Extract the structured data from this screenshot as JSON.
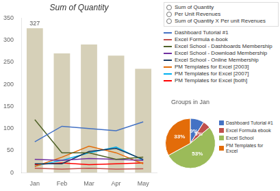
{
  "chart_data": [
    {
      "type": "bar",
      "title": "Sum of Quantity",
      "categories": [
        "Jan",
        "Feb",
        "Mar",
        "Apr",
        "May"
      ],
      "series": [
        {
          "type": "bar",
          "color": "#d6d0b8",
          "values": [
            327,
            270,
            290,
            265,
            235
          ],
          "value_labels": [
            "327",
            null,
            null,
            null,
            null
          ]
        },
        {
          "name": "Dashboard Tutorial #1",
          "type": "line",
          "color": "#4472c4",
          "values": [
            70,
            105,
            100,
            95,
            115
          ]
        },
        {
          "name": "Excel Formula e-book",
          "type": "line",
          "color": "#c0504d",
          "values": [
            10,
            8,
            10,
            8,
            9
          ]
        },
        {
          "name": "Excel School - Dashboards Membership",
          "type": "line",
          "color": "#4f6228",
          "values": [
            120,
            45,
            45,
            30,
            35
          ]
        },
        {
          "name": "Excel School - Download Membership",
          "type": "line",
          "color": "#7030a0",
          "values": [
            30,
            28,
            32,
            30,
            28
          ]
        },
        {
          "name": "Excel School - Online Membership",
          "type": "line",
          "color": "#17375e",
          "values": [
            20,
            20,
            48,
            55,
            30
          ]
        },
        {
          "name": "PM Templates for Excel [2003]",
          "type": "line",
          "color": "#e36c09",
          "values": [
            14,
            35,
            60,
            45,
            20
          ]
        },
        {
          "name": "PM Templates for Excel [2007]",
          "type": "line",
          "color": "#00b0f0",
          "values": [
            15,
            28,
            45,
            58,
            28
          ]
        },
        {
          "name": "PM Templates for Excel [both]",
          "type": "line",
          "color": "#ff0000",
          "values": [
            18,
            22,
            18,
            20,
            22
          ]
        }
      ],
      "ylim": [
        0,
        350
      ],
      "yticks": [
        0,
        50,
        100,
        150,
        200,
        250,
        300,
        350
      ],
      "grid": false,
      "legend": "right",
      "annotations": [
        "Sum of Quantity",
        "Per Unit Revenues",
        "Sum of Quantity X Per unit Revenues"
      ]
    },
    {
      "type": "pie",
      "title": "Groups in Jan",
      "categories": [
        "Dashboard Tutorial #1",
        "Excel Formula ebook",
        "Excel School",
        "PM Templates for\nExcel"
      ],
      "values": [
        9,
        5,
        53,
        33
      ],
      "value_labels": [
        "9%",
        "5%",
        "53%",
        "33%"
      ],
      "data_labels": true,
      "colors": [
        "#4472c4",
        "#c0504d",
        "#9bbb59",
        "#e36c09"
      ],
      "legend": "right"
    }
  ]
}
